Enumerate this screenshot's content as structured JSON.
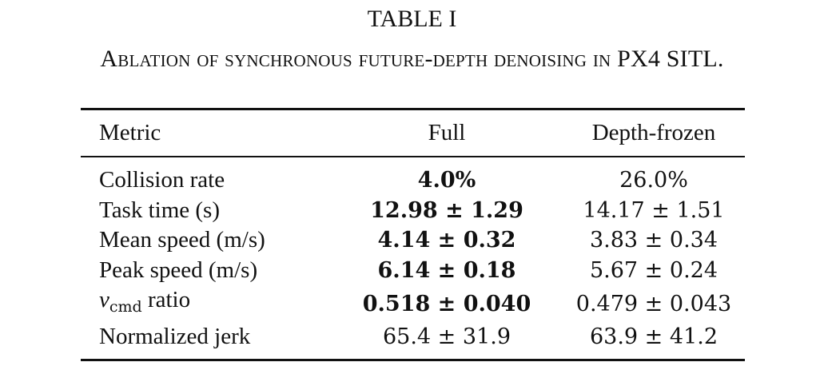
{
  "caption": {
    "label": "TABLE I",
    "title": "Ablation of synchronous future-depth denoising in PX4 SITL."
  },
  "table": {
    "headers": [
      "Metric",
      "Full",
      "Depth-frozen"
    ],
    "rows": [
      {
        "metric": "Collision rate",
        "full": "4.0%",
        "frozen": "26.0%"
      },
      {
        "metric": "Task time (s)",
        "full": "12.98 ± 1.29",
        "frozen": "14.17 ± 1.51"
      },
      {
        "metric": "Mean speed (m/s)",
        "full": "4.14 ± 0.32",
        "frozen": "3.83 ± 0.34"
      },
      {
        "metric": "Peak speed (m/s)",
        "full": "6.14 ± 0.18",
        "frozen": "5.67 ± 0.24"
      },
      {
        "metric_symbol": "v",
        "metric_subscript": "cmd",
        "metric": "ratio",
        "full": "0.518 ± 0.040",
        "frozen": "0.479 ± 0.043"
      },
      {
        "metric": "Normalized jerk",
        "full": "65.4 ± 31.9",
        "frozen": "63.9 ± 41.2"
      }
    ]
  }
}
